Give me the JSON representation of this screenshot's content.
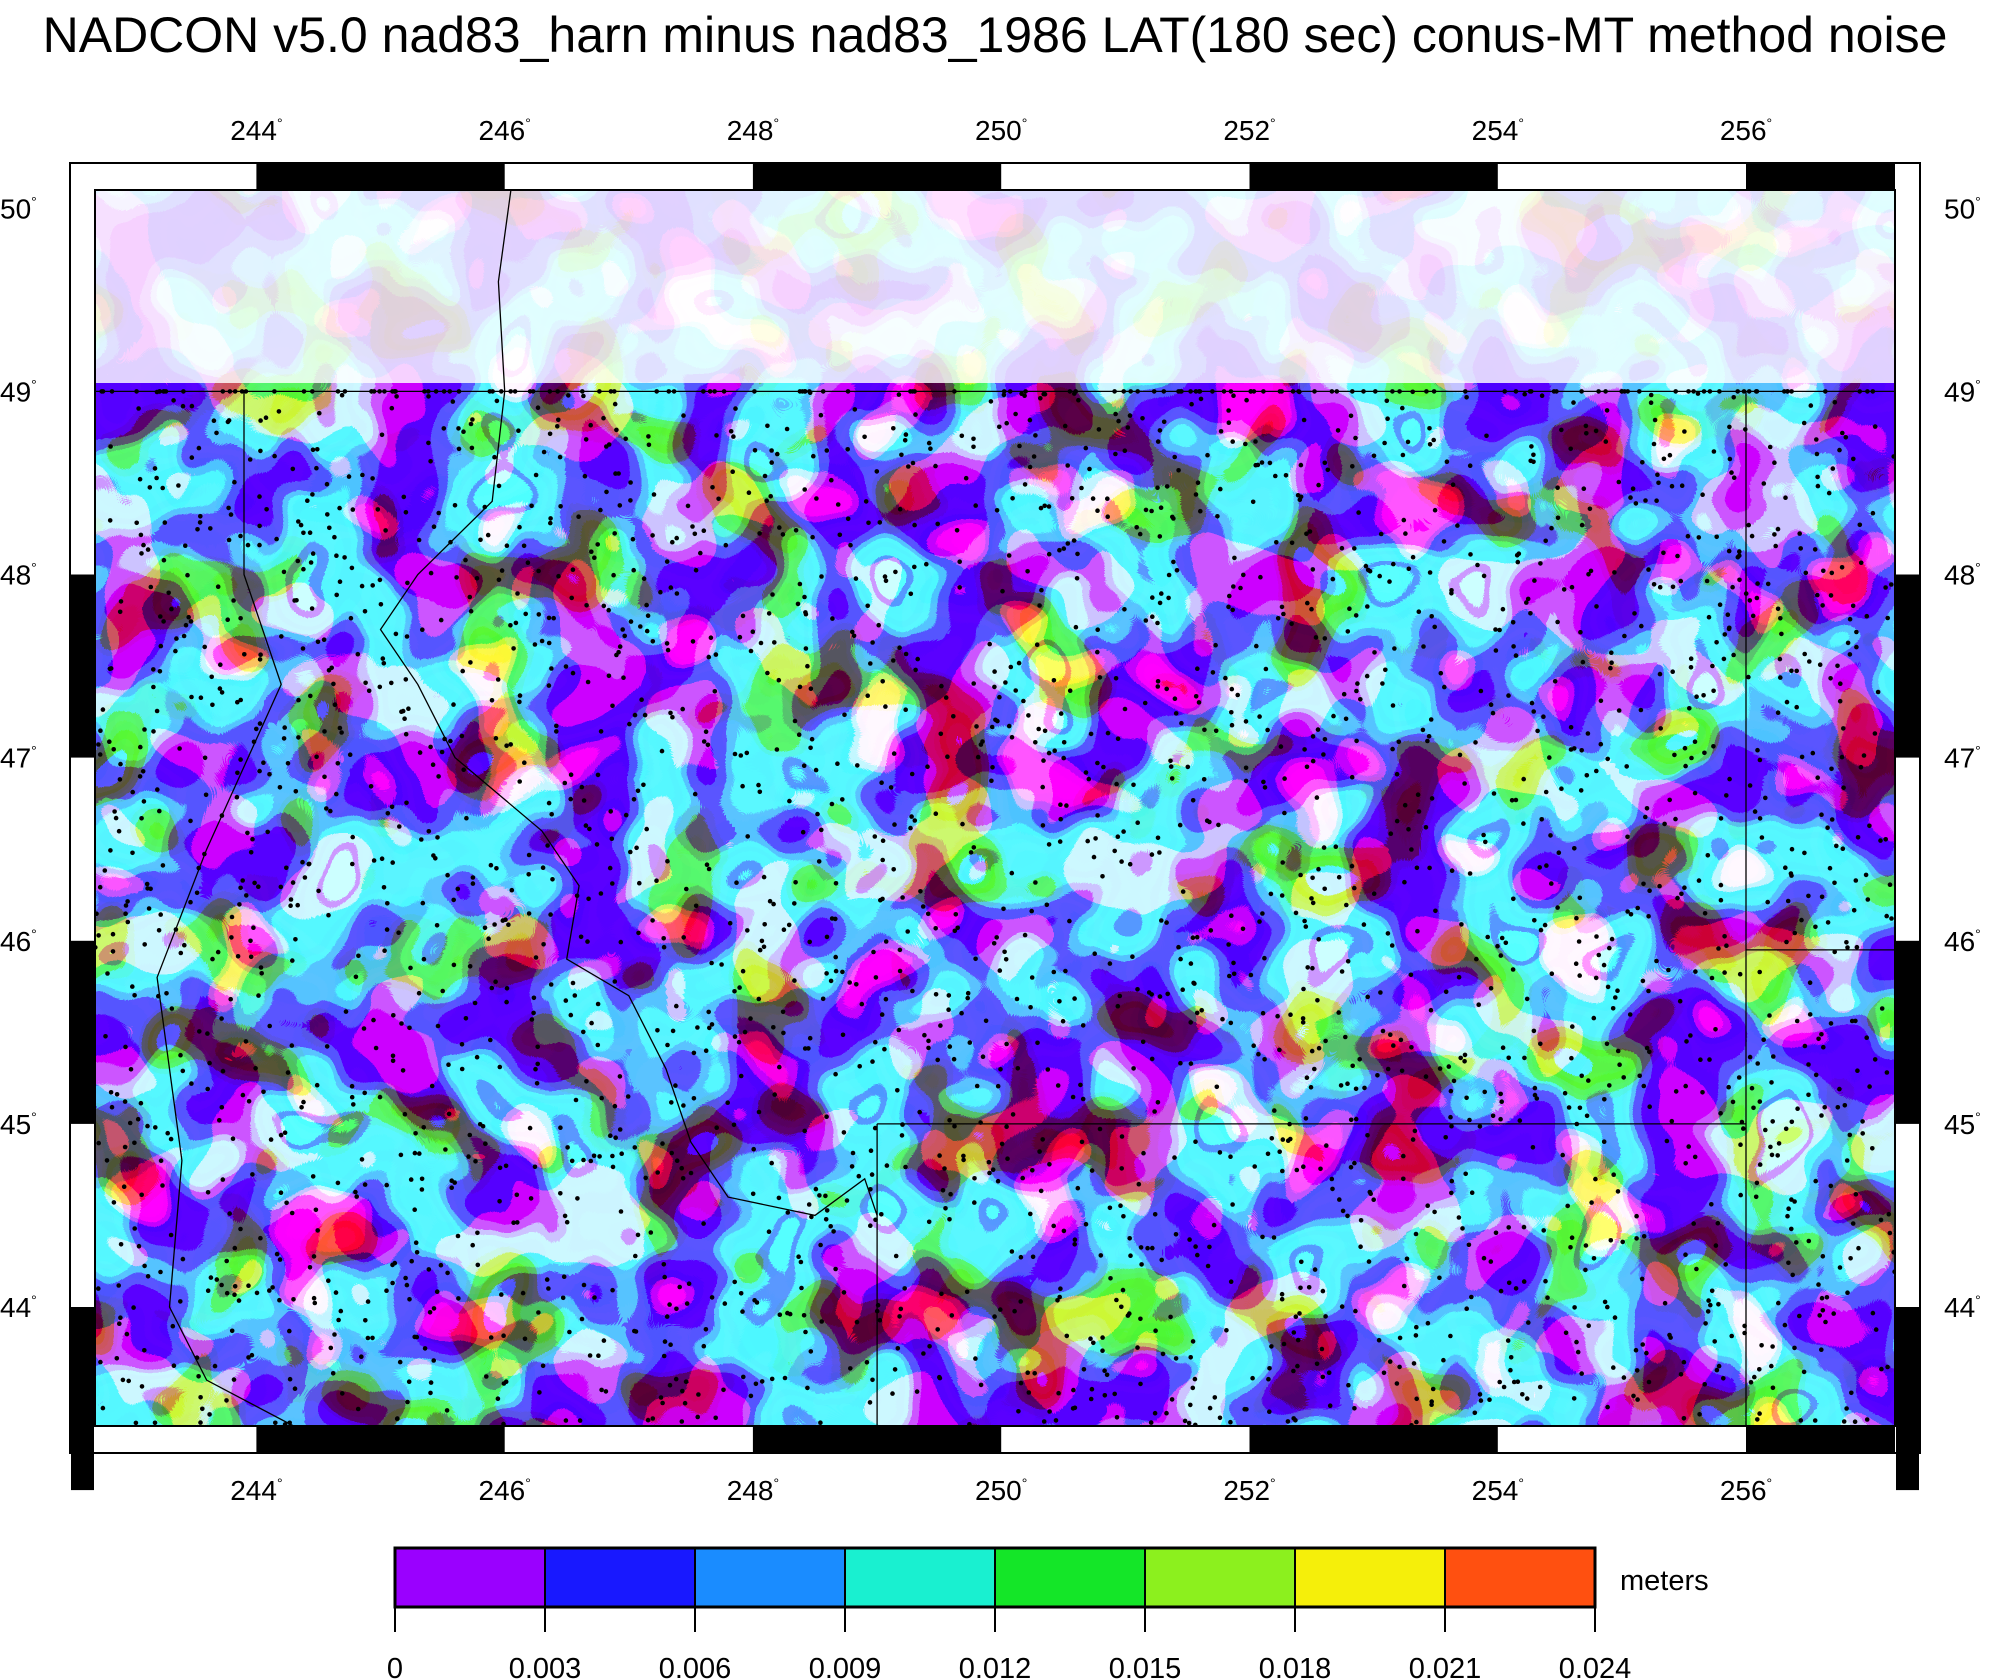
{
  "title": "NADCON v5.0 nad83_harn minus nad83_1986 LAT(180 sec) conus-MT method noise",
  "map": {
    "lon_range": [
      242.7,
      257.2
    ],
    "lat_range": [
      43.35,
      50.1
    ],
    "lon_ticks": [
      "244",
      "246",
      "248",
      "250",
      "252",
      "254",
      "256"
    ],
    "lat_ticks": [
      "44",
      "45",
      "46",
      "47",
      "48",
      "49",
      "50"
    ],
    "degree_symbol": "°",
    "station_points_color": "#000000",
    "boundary_lines": "state and national borders (Montana region)"
  },
  "colorbar": {
    "unit": "meters",
    "tick_labels": [
      "0",
      "0.003",
      "0.006",
      "0.009",
      "0.012",
      "0.015",
      "0.018",
      "0.021",
      "0.024"
    ],
    "colors": [
      "#9a00ff",
      "#1818ff",
      "#1a8cff",
      "#19f0d0",
      "#14e628",
      "#8cf01e",
      "#f5ef0a",
      "#ff5010"
    ],
    "over_color": "#ffffff"
  }
}
